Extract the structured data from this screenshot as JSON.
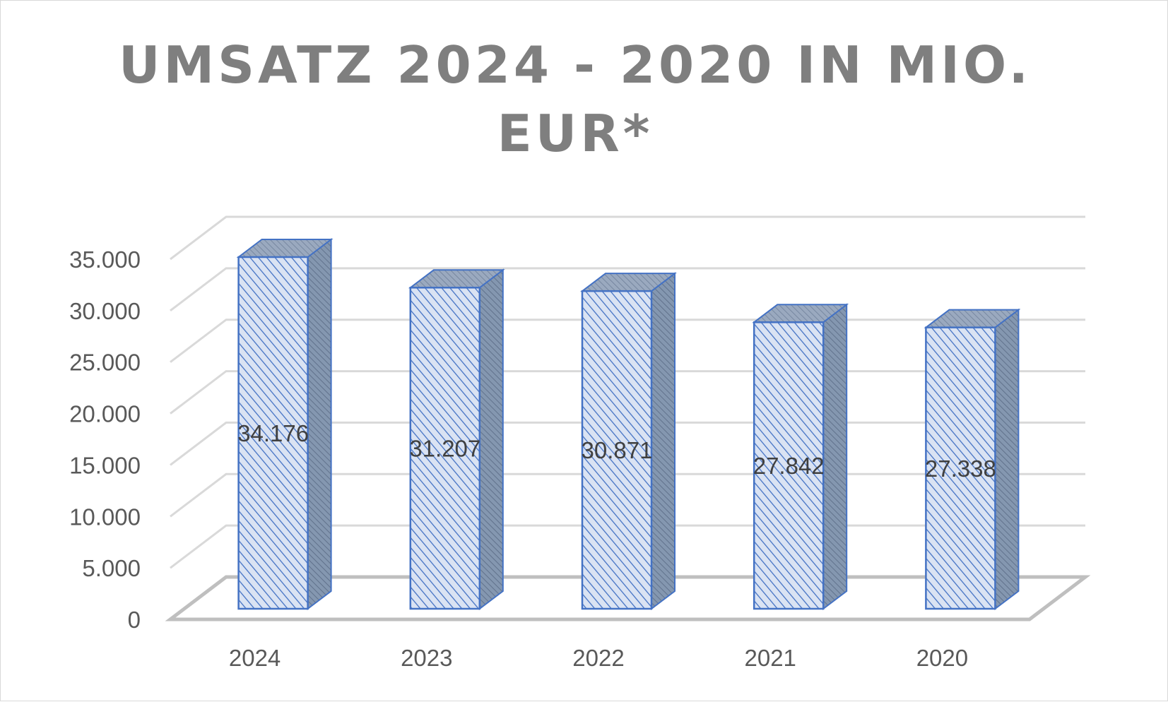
{
  "chart_data": {
    "type": "bar",
    "title_lines": [
      "UMSATZ 2024 - 2020 IN MIO.",
      "EUR*"
    ],
    "categories": [
      "2024",
      "2023",
      "2022",
      "2021",
      "2020"
    ],
    "values": [
      34176,
      31207,
      30871,
      27842,
      27338
    ],
    "value_labels": [
      "34.176",
      "31.207",
      "30.871",
      "27.842",
      "27.338"
    ],
    "y_ticks": [
      "0",
      "5.000",
      "10.000",
      "15.000",
      "20.000",
      "25.000",
      "30.000",
      "35.000"
    ],
    "ylim": [
      0,
      35000
    ],
    "grid": true,
    "legend": "none",
    "style": "3d-column",
    "colors": {
      "bar_front_fill": "#dae3f3",
      "bar_hatch": "#4472c4",
      "bar_side": "#8497b0",
      "bar_outline": "#4472c4",
      "gridline": "#d9d9d9",
      "floor": "#bfbfbf",
      "title": "#7f7f7f",
      "tick_text": "#595959"
    }
  }
}
